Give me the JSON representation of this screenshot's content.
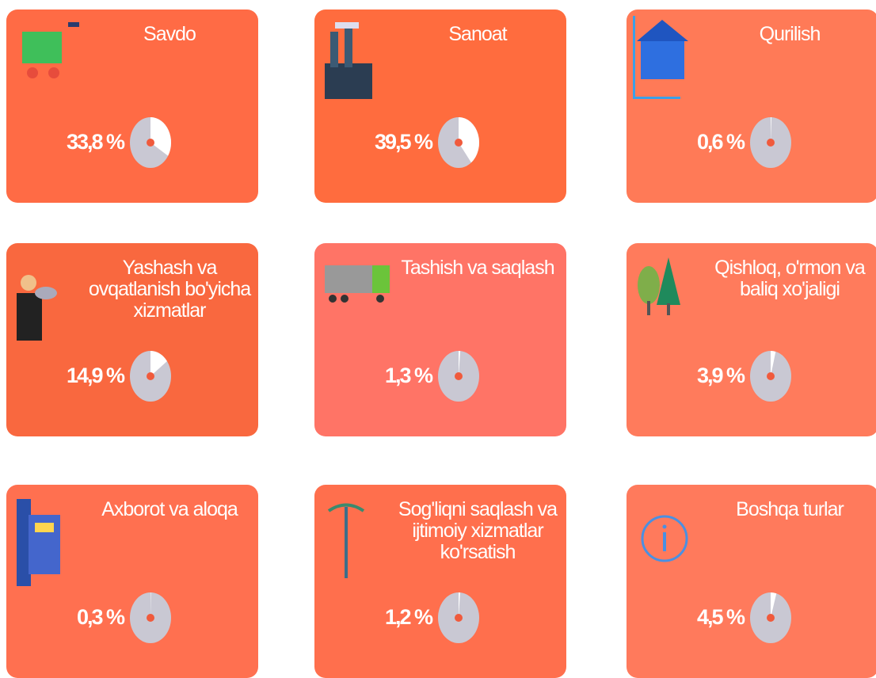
{
  "chart_data": {
    "type": "pie",
    "categories": [
      "Savdo",
      "Sanoat",
      "Qurilish",
      "Yashash va ovqatlanish bo'yicha xizmatlar",
      "Tashish va saqlash",
      "Qishloq, o'rmon va baliq xo'jaligi",
      "Axborot va aloqa",
      "Sog'liqni saqlash va ijtimoiy xizmatlar ko'rsatish",
      "Boshqa turlar"
    ],
    "values": [
      33.8,
      39.5,
      0.6,
      14.9,
      1.3,
      3.9,
      0.3,
      1.2,
      4.5
    ],
    "value_labels": [
      "33,8 %",
      "39,5 %",
      "0,6 %",
      "14,9 %",
      "1,3 %",
      "3,9 %",
      "0,3 %",
      "1,2 %",
      "4,5 %"
    ],
    "colors": [
      "#ff6b45",
      "#ff6c3e",
      "#ff7a57",
      "#f9683f",
      "#ff7466",
      "#ff7b5c",
      "#ff7050",
      "#ff6f4d",
      "#ff7a5c"
    ]
  }
}
